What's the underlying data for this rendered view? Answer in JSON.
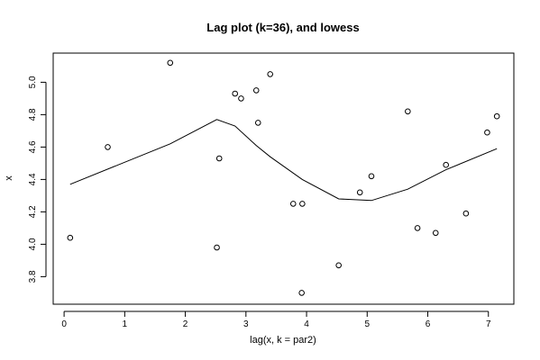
{
  "chart_data": {
    "type": "scatter",
    "title": "Lag plot (k=36), and lowess",
    "xlabel": "lag(x, k = par2)",
    "ylabel": "x",
    "xlim": [
      -0.18,
      7.42
    ],
    "ylim": [
      3.63,
      5.18
    ],
    "xticks": [
      0,
      1,
      2,
      3,
      4,
      5,
      6,
      7
    ],
    "yticks": [
      3.8,
      4.0,
      4.2,
      4.4,
      4.6,
      4.8,
      5.0
    ],
    "ytick_labels": [
      "3.8",
      "4.0",
      "4.2",
      "4.4",
      "4.6",
      "4.8",
      "5.0"
    ],
    "grid": false,
    "series": [
      {
        "kind": "points",
        "marker": "open-circle",
        "points": [
          [
            0.1,
            4.04
          ],
          [
            0.72,
            4.6
          ],
          [
            1.75,
            5.12
          ],
          [
            2.52,
            3.98
          ],
          [
            2.56,
            4.53
          ],
          [
            2.82,
            4.93
          ],
          [
            2.92,
            4.9
          ],
          [
            3.17,
            4.95
          ],
          [
            3.2,
            4.75
          ],
          [
            3.4,
            5.05
          ],
          [
            3.78,
            4.25
          ],
          [
            3.93,
            4.25
          ],
          [
            3.92,
            3.7
          ],
          [
            4.53,
            3.87
          ],
          [
            4.88,
            4.32
          ],
          [
            5.07,
            4.42
          ],
          [
            5.67,
            4.82
          ],
          [
            5.83,
            4.1
          ],
          [
            6.13,
            4.07
          ],
          [
            6.3,
            4.49
          ],
          [
            6.63,
            4.19
          ],
          [
            6.98,
            4.69
          ],
          [
            7.14,
            4.79
          ]
        ]
      },
      {
        "kind": "line",
        "points": [
          [
            0.1,
            4.37
          ],
          [
            1.75,
            4.62
          ],
          [
            2.52,
            4.77
          ],
          [
            2.82,
            4.73
          ],
          [
            3.17,
            4.61
          ],
          [
            3.4,
            4.54
          ],
          [
            3.93,
            4.4
          ],
          [
            4.53,
            4.28
          ],
          [
            5.07,
            4.27
          ],
          [
            5.67,
            4.34
          ],
          [
            6.3,
            4.46
          ],
          [
            7.14,
            4.59
          ]
        ]
      }
    ]
  }
}
